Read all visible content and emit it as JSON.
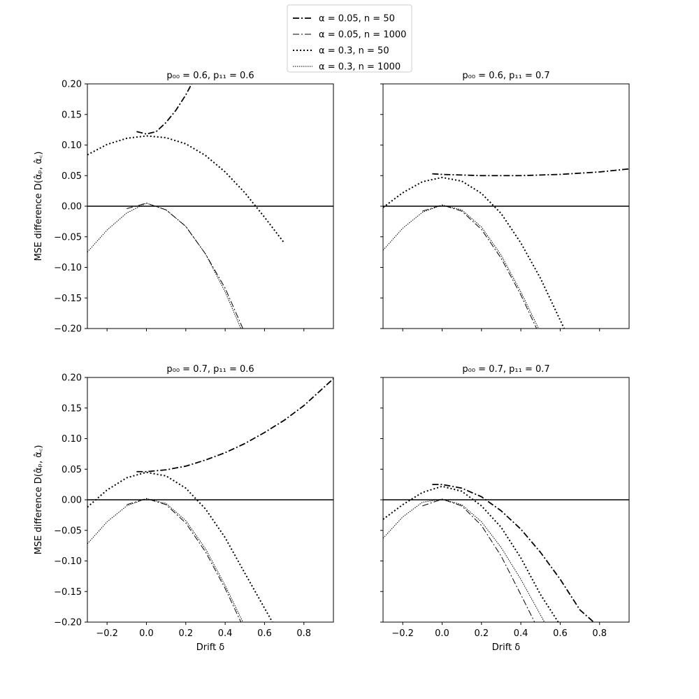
{
  "legend": {
    "placement": "top-center",
    "entries": [
      {
        "label": "α = 0.05, n = 50",
        "style": "dashdot-thick"
      },
      {
        "label": "α = 0.05, n = 1000",
        "style": "dashdot-thin"
      },
      {
        "label": "α = 0.3, n = 50",
        "style": "dotted-thick"
      },
      {
        "label": "α = 0.3, n = 1000",
        "style": "dotted-thin"
      }
    ]
  },
  "colors": {
    "lines": "#000000",
    "background": "#ffffff"
  },
  "chart_data": [
    {
      "type": "line",
      "title": "p₀₀ = 0.6, p₁₁ = 0.6",
      "xlabel": "",
      "ylabel": "MSE difference D(α̂ₚ, α̂꜀)",
      "xlim": [
        -0.3,
        0.95
      ],
      "ylim": [
        -0.2,
        0.2
      ],
      "xticks": [
        -0.2,
        0.0,
        0.2,
        0.4,
        0.6,
        0.8
      ],
      "xtick_labels": [
        "",
        "",
        "",
        "",
        "",
        ""
      ],
      "yticks": [
        -0.2,
        -0.15,
        -0.1,
        -0.05,
        0.0,
        0.05,
        0.1,
        0.15,
        0.2
      ],
      "ytick_labels": [
        "−0.20",
        "−0.15",
        "−0.10",
        "−0.05",
        "0.00",
        "0.05",
        "0.10",
        "0.15",
        "0.20"
      ],
      "hline": 0.0,
      "series": [
        {
          "name": "α = 0.05, n = 50",
          "style": "dashdot-thick",
          "x": [
            -0.05,
            0.0,
            0.05,
            0.1,
            0.15,
            0.2,
            0.23
          ],
          "y": [
            0.122,
            0.118,
            0.122,
            0.137,
            0.157,
            0.182,
            0.2
          ]
        },
        {
          "name": "α = 0.05, n = 1000",
          "style": "dashdot-thin",
          "x": [
            -0.1,
            0.0,
            0.1,
            0.2,
            0.3,
            0.4,
            0.49
          ],
          "y": [
            -0.004,
            0.005,
            -0.006,
            -0.033,
            -0.078,
            -0.134,
            -0.2
          ]
        },
        {
          "name": "α = 0.3, n = 50",
          "style": "dotted-thick",
          "x": [
            -0.3,
            -0.2,
            -0.1,
            0.0,
            0.1,
            0.2,
            0.3,
            0.4,
            0.5,
            0.6,
            0.7
          ],
          "y": [
            0.084,
            0.101,
            0.111,
            0.115,
            0.112,
            0.102,
            0.083,
            0.056,
            0.022,
            -0.018,
            -0.06
          ]
        },
        {
          "name": "α = 0.3, n = 1000",
          "style": "dotted-thin",
          "x": [
            -0.3,
            -0.2,
            -0.1,
            0.0,
            0.1,
            0.2,
            0.3,
            0.4,
            0.48
          ],
          "y": [
            -0.075,
            -0.039,
            -0.011,
            0.005,
            -0.006,
            -0.033,
            -0.078,
            -0.14,
            -0.2
          ]
        }
      ]
    },
    {
      "type": "line",
      "title": "p₀₀ = 0.6, p₁₁ = 0.7",
      "xlabel": "",
      "ylabel": "",
      "xlim": [
        -0.3,
        0.95
      ],
      "ylim": [
        -0.2,
        0.2
      ],
      "xticks": [
        -0.2,
        0.0,
        0.2,
        0.4,
        0.6,
        0.8
      ],
      "xtick_labels": [
        "",
        "",
        "",
        "",
        "",
        ""
      ],
      "yticks": [
        -0.2,
        -0.15,
        -0.1,
        -0.05,
        0.0,
        0.05,
        0.1,
        0.15,
        0.2
      ],
      "ytick_labels": [
        "",
        "",
        "",
        "",
        "",
        "",
        "",
        "",
        ""
      ],
      "hline": 0.0,
      "series": [
        {
          "name": "α = 0.05, n = 50",
          "style": "dashdot-thick",
          "x": [
            -0.05,
            0.0,
            0.1,
            0.2,
            0.3,
            0.4,
            0.5,
            0.6,
            0.7,
            0.8,
            0.95
          ],
          "y": [
            0.053,
            0.052,
            0.051,
            0.05,
            0.05,
            0.05,
            0.051,
            0.052,
            0.054,
            0.056,
            0.061
          ]
        },
        {
          "name": "α = 0.05, n = 1000",
          "style": "dashdot-thin",
          "x": [
            -0.1,
            0.0,
            0.1,
            0.2,
            0.3,
            0.4,
            0.48
          ],
          "y": [
            -0.008,
            0.002,
            -0.008,
            -0.038,
            -0.085,
            -0.145,
            -0.2
          ]
        },
        {
          "name": "α = 0.3, n = 50",
          "style": "dotted-thick",
          "x": [
            -0.3,
            -0.2,
            -0.1,
            0.0,
            0.1,
            0.2,
            0.3,
            0.4,
            0.5,
            0.62
          ],
          "y": [
            -0.002,
            0.022,
            0.04,
            0.047,
            0.041,
            0.021,
            -0.012,
            -0.06,
            -0.118,
            -0.2
          ]
        },
        {
          "name": "α = 0.3, n = 1000",
          "style": "dotted-thin",
          "x": [
            -0.3,
            -0.2,
            -0.1,
            0.0,
            0.1,
            0.2,
            0.3,
            0.4,
            0.49
          ],
          "y": [
            -0.072,
            -0.036,
            -0.01,
            0.002,
            -0.006,
            -0.034,
            -0.08,
            -0.14,
            -0.2
          ]
        }
      ]
    },
    {
      "type": "line",
      "title": "p₀₀ = 0.7, p₁₁ = 0.6",
      "xlabel": "Drift δ",
      "ylabel": "MSE difference D(α̂ₚ, α̂꜀)",
      "xlim": [
        -0.3,
        0.95
      ],
      "ylim": [
        -0.2,
        0.2
      ],
      "xticks": [
        -0.2,
        0.0,
        0.2,
        0.4,
        0.6,
        0.8
      ],
      "xtick_labels": [
        "−0.2",
        "0.0",
        "0.2",
        "0.4",
        "0.6",
        "0.8"
      ],
      "yticks": [
        -0.2,
        -0.15,
        -0.1,
        -0.05,
        0.0,
        0.05,
        0.1,
        0.15,
        0.2
      ],
      "ytick_labels": [
        "−0.20",
        "−0.15",
        "−0.10",
        "−0.05",
        "0.00",
        "0.05",
        "0.10",
        "0.15",
        "0.20"
      ],
      "hline": 0.0,
      "series": [
        {
          "name": "α = 0.05, n = 50",
          "style": "dashdot-thick",
          "x": [
            -0.05,
            0.0,
            0.1,
            0.2,
            0.3,
            0.4,
            0.5,
            0.6,
            0.7,
            0.8,
            0.95
          ],
          "y": [
            0.046,
            0.046,
            0.049,
            0.055,
            0.065,
            0.077,
            0.092,
            0.11,
            0.13,
            0.154,
            0.198
          ]
        },
        {
          "name": "α = 0.05, n = 1000",
          "style": "dashdot-thin",
          "x": [
            -0.1,
            0.0,
            0.1,
            0.2,
            0.3,
            0.4,
            0.48
          ],
          "y": [
            -0.008,
            0.002,
            -0.008,
            -0.038,
            -0.085,
            -0.145,
            -0.2
          ]
        },
        {
          "name": "α = 0.3, n = 50",
          "style": "dotted-thick",
          "x": [
            -0.3,
            -0.2,
            -0.1,
            0.0,
            0.1,
            0.2,
            0.3,
            0.4,
            0.5,
            0.64
          ],
          "y": [
            -0.012,
            0.016,
            0.036,
            0.045,
            0.039,
            0.019,
            -0.015,
            -0.062,
            -0.12,
            -0.2
          ]
        },
        {
          "name": "α = 0.3, n = 1000",
          "style": "dotted-thin",
          "x": [
            -0.3,
            -0.2,
            -0.1,
            0.0,
            0.1,
            0.2,
            0.3,
            0.4,
            0.49
          ],
          "y": [
            -0.072,
            -0.036,
            -0.01,
            0.002,
            -0.006,
            -0.034,
            -0.08,
            -0.14,
            -0.2
          ]
        }
      ]
    },
    {
      "type": "line",
      "title": "p₀₀ = 0.7, p₁₁ = 0.7",
      "xlabel": "Drift δ",
      "ylabel": "",
      "xlim": [
        -0.3,
        0.95
      ],
      "ylim": [
        -0.2,
        0.2
      ],
      "xticks": [
        -0.2,
        0.0,
        0.2,
        0.4,
        0.6,
        0.8
      ],
      "xtick_labels": [
        "−0.2",
        "0.0",
        "0.2",
        "0.4",
        "0.6",
        "0.8"
      ],
      "yticks": [
        -0.2,
        -0.15,
        -0.1,
        -0.05,
        0.0,
        0.05,
        0.1,
        0.15,
        0.2
      ],
      "ytick_labels": [
        "",
        "",
        "",
        "",
        "",
        "",
        "",
        "",
        ""
      ],
      "hline": 0.0,
      "series": [
        {
          "name": "α = 0.05, n = 50",
          "style": "dashdot-thick",
          "x": [
            -0.05,
            0.0,
            0.1,
            0.2,
            0.3,
            0.4,
            0.5,
            0.6,
            0.7,
            0.77
          ],
          "y": [
            0.025,
            0.025,
            0.019,
            0.005,
            -0.018,
            -0.048,
            -0.086,
            -0.13,
            -0.18,
            -0.2
          ]
        },
        {
          "name": "α = 0.05, n = 1000",
          "style": "dashdot-thin",
          "x": [
            -0.1,
            0.0,
            0.1,
            0.2,
            0.3,
            0.4,
            0.47
          ],
          "y": [
            -0.01,
            0.001,
            -0.01,
            -0.042,
            -0.092,
            -0.155,
            -0.2
          ]
        },
        {
          "name": "α = 0.3, n = 50",
          "style": "dotted-thick",
          "x": [
            -0.3,
            -0.2,
            -0.1,
            0.0,
            0.1,
            0.2,
            0.3,
            0.4,
            0.5,
            0.59
          ],
          "y": [
            -0.032,
            -0.008,
            0.012,
            0.022,
            0.014,
            -0.01,
            -0.045,
            -0.095,
            -0.155,
            -0.2
          ]
        },
        {
          "name": "α = 0.3, n = 1000",
          "style": "dotted-thin",
          "x": [
            -0.3,
            -0.2,
            -0.1,
            0.0,
            0.1,
            0.2,
            0.3,
            0.4,
            0.52
          ],
          "y": [
            -0.063,
            -0.028,
            -0.004,
            0.001,
            -0.008,
            -0.036,
            -0.078,
            -0.13,
            -0.2
          ]
        }
      ]
    }
  ]
}
